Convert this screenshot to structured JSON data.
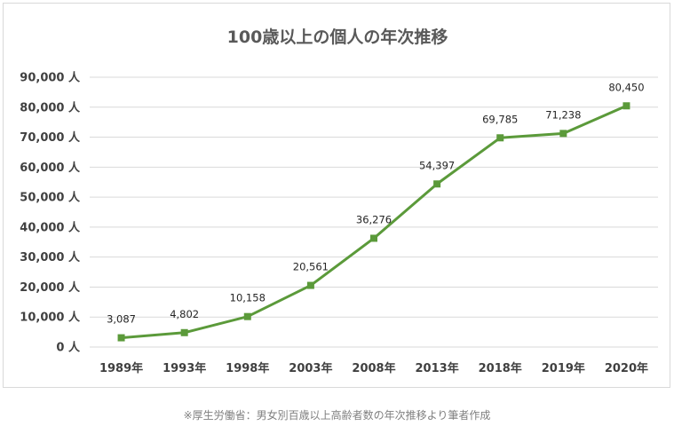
{
  "chart_data": {
    "type": "line",
    "title": "100歳以上の個人の年次推移",
    "categories": [
      "1989年",
      "1993年",
      "1998年",
      "2003年",
      "2008年",
      "2013年",
      "2018年",
      "2019年",
      "2020年"
    ],
    "series": [
      {
        "values": [
          3087,
          4802,
          10158,
          20561,
          36276,
          54397,
          69785,
          71238,
          80450
        ],
        "data_labels": [
          "3,087",
          "4,802",
          "10,158",
          "20,561",
          "36,276",
          "54,397",
          "69,785",
          "71,238",
          "80,450"
        ],
        "color": "#5b9a3a",
        "marker": "square"
      }
    ],
    "ylim": [
      0,
      90000
    ],
    "yticks": [
      0,
      10000,
      20000,
      30000,
      40000,
      50000,
      60000,
      70000,
      80000,
      90000
    ],
    "ytick_labels": [
      "0 人",
      "10,000 人",
      "20,000 人",
      "30,000 人",
      "40,000 人",
      "50,000 人",
      "60,000 人",
      "70,000 人",
      "80,000 人",
      "90,000 人"
    ],
    "grid": true,
    "legend": "none"
  },
  "source_note": "※厚生労働省：男女別百歳以上高齢者数の年次推移より筆者作成",
  "colors": {
    "line": "#5b9a3a",
    "grid": "#d9d9d9",
    "text": "#404040"
  }
}
